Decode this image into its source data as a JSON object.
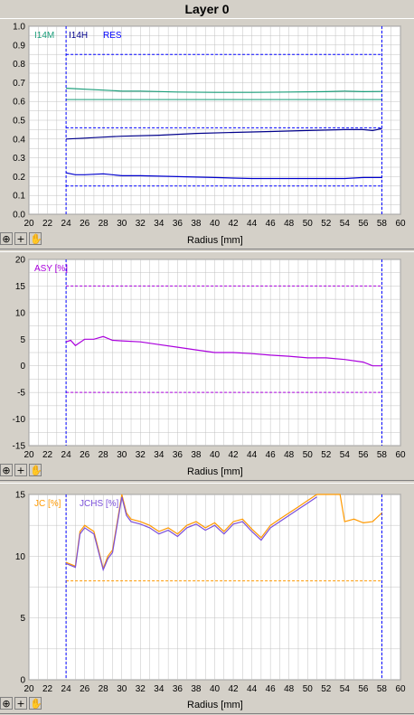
{
  "window": {
    "title": "Layer 0"
  },
  "toolbar": {
    "icons": [
      "zoom-icon",
      "crosshair-icon",
      "hand-pan-icon"
    ],
    "glyphs": [
      "⊕",
      "+",
      "✋"
    ]
  },
  "colors": {
    "grid": "#c0c0c0",
    "limit_blue": "#0000ff",
    "plot_bg": "#ffffff"
  },
  "chart_data": [
    {
      "type": "line",
      "xlabel": "Radius [mm]",
      "ylabel": "",
      "xlim": [
        20,
        60
      ],
      "ylim": [
        0.0,
        1.0
      ],
      "xticks": [
        "20",
        "22",
        "24",
        "26",
        "28",
        "30",
        "32",
        "34",
        "36",
        "38",
        "40",
        "42",
        "44",
        "46",
        "48",
        "50",
        "52",
        "54",
        "56",
        "58",
        "60"
      ],
      "yticks": [
        "0.0",
        "0.1",
        "0.2",
        "0.3",
        "0.4",
        "0.5",
        "0.6",
        "0.7",
        "0.8",
        "0.9",
        "1.0"
      ],
      "grid": true,
      "vlines": [
        24,
        58
      ],
      "legend": [
        "I14M",
        "I14H",
        "RES"
      ],
      "legend_colors": [
        "#1a9e7a",
        "#00008b",
        "#0000ff"
      ],
      "series": [
        {
          "name": "I14M",
          "color": "#1a9e7a",
          "x": [
            24,
            26,
            28,
            30,
            32,
            36,
            40,
            44,
            48,
            52,
            54,
            56,
            58
          ],
          "y": [
            0.67,
            0.665,
            0.66,
            0.655,
            0.655,
            0.65,
            0.648,
            0.648,
            0.65,
            0.652,
            0.655,
            0.652,
            0.653
          ]
        },
        {
          "name": "I14H",
          "color": "#00008b",
          "x": [
            24,
            26,
            28,
            30,
            34,
            38,
            42,
            46,
            50,
            54,
            56,
            57,
            58
          ],
          "y": [
            0.4,
            0.405,
            0.41,
            0.415,
            0.42,
            0.43,
            0.435,
            0.44,
            0.445,
            0.45,
            0.45,
            0.445,
            0.455
          ]
        },
        {
          "name": "RES",
          "color": "#0000cd",
          "x": [
            24,
            25,
            26,
            28,
            30,
            32,
            36,
            40,
            44,
            48,
            52,
            54,
            56,
            58
          ],
          "y": [
            0.22,
            0.21,
            0.21,
            0.215,
            0.205,
            0.205,
            0.2,
            0.195,
            0.19,
            0.19,
            0.19,
            0.19,
            0.195,
            0.195
          ]
        }
      ],
      "hlines": [
        {
          "y": 0.85,
          "color": "#0000ff",
          "style": "dashed"
        },
        {
          "y": 0.61,
          "color": "#1a9e7a",
          "style": "solid"
        },
        {
          "y": 0.46,
          "color": "#0000ff",
          "style": "dashed"
        },
        {
          "y": 0.15,
          "color": "#0000ff",
          "style": "dashed"
        }
      ]
    },
    {
      "type": "line",
      "xlabel": "Radius [mm]",
      "ylabel": "",
      "xlim": [
        20,
        60
      ],
      "ylim": [
        -15,
        20
      ],
      "xticks": [
        "20",
        "22",
        "24",
        "26",
        "28",
        "30",
        "32",
        "34",
        "36",
        "38",
        "40",
        "42",
        "44",
        "46",
        "48",
        "50",
        "52",
        "54",
        "56",
        "58",
        "60"
      ],
      "yticks": [
        "-15",
        "-10",
        "-5",
        "0",
        "5",
        "10",
        "15",
        "20"
      ],
      "grid": true,
      "vlines": [
        24,
        58
      ],
      "legend": [
        "ASY [%]"
      ],
      "legend_colors": [
        "#aa00dd"
      ],
      "series": [
        {
          "name": "ASY [%]",
          "color": "#aa00dd",
          "x": [
            24,
            24.5,
            25,
            26,
            27,
            28,
            29,
            30,
            32,
            34,
            36,
            38,
            40,
            42,
            44,
            46,
            48,
            50,
            52,
            54,
            56,
            57,
            58
          ],
          "y": [
            4.5,
            4.8,
            3.8,
            5.0,
            5.0,
            5.5,
            4.8,
            4.7,
            4.5,
            4.0,
            3.5,
            3.0,
            2.5,
            2.5,
            2.3,
            2.0,
            1.8,
            1.5,
            1.5,
            1.2,
            0.7,
            0.0,
            0.0
          ]
        }
      ],
      "hlines": [
        {
          "y": 15,
          "color": "#aa00dd",
          "style": "dashed"
        },
        {
          "y": -5,
          "color": "#aa00dd",
          "style": "dashed"
        }
      ]
    },
    {
      "type": "line",
      "xlabel": "Radius [mm]",
      "ylabel": "",
      "xlim": [
        20,
        60
      ],
      "ylim": [
        0,
        15
      ],
      "xticks": [
        "20",
        "22",
        "24",
        "26",
        "28",
        "30",
        "32",
        "34",
        "36",
        "38",
        "40",
        "42",
        "44",
        "46",
        "48",
        "50",
        "52",
        "54",
        "56",
        "58",
        "60"
      ],
      "yticks": [
        "0",
        "5",
        "10",
        "15"
      ],
      "grid": true,
      "vlines": [
        24,
        58
      ],
      "legend": [
        "JC [%]",
        "JCHS [%]"
      ],
      "legend_colors": [
        "#ff9900",
        "#7a4fd9"
      ],
      "series": [
        {
          "name": "JC [%]",
          "color": "#ff9900",
          "x": [
            24,
            25,
            25.5,
            26,
            27,
            28,
            28.5,
            29,
            30,
            30.5,
            31,
            32,
            33,
            34,
            35,
            36,
            37,
            38,
            39,
            40,
            41,
            42,
            43,
            44,
            45,
            46,
            47,
            48,
            49,
            50,
            51,
            53.5,
            54,
            55,
            56,
            57,
            58
          ],
          "y": [
            9.5,
            9.2,
            12.0,
            12.5,
            12.0,
            9.0,
            10.0,
            10.5,
            15.0,
            13.5,
            13.0,
            12.8,
            12.5,
            12.0,
            12.3,
            11.8,
            12.5,
            12.8,
            12.3,
            12.7,
            12.0,
            12.8,
            13.0,
            12.2,
            11.5,
            12.5,
            13.0,
            13.5,
            14.0,
            14.5,
            15.0,
            15.0,
            12.8,
            13.0,
            12.7,
            12.8,
            13.5
          ]
        },
        {
          "name": "JCHS [%]",
          "color": "#7a4fd9",
          "x": [
            24,
            25,
            25.5,
            26,
            27,
            28,
            28.5,
            29,
            30,
            30.5,
            31,
            32,
            33,
            34,
            35,
            36,
            37,
            38,
            39,
            40,
            41,
            42,
            43,
            44,
            45,
            46,
            47,
            48,
            49,
            50,
            51
          ],
          "y": [
            9.4,
            9.1,
            11.8,
            12.3,
            11.8,
            8.9,
            9.8,
            10.3,
            14.8,
            13.3,
            12.8,
            12.6,
            12.3,
            11.8,
            12.1,
            11.6,
            12.3,
            12.6,
            12.1,
            12.5,
            11.8,
            12.6,
            12.8,
            12.0,
            11.3,
            12.3,
            12.8,
            13.3,
            13.8,
            14.3,
            14.8
          ]
        }
      ],
      "hlines": [
        {
          "y": 8,
          "color": "#ff9900",
          "style": "dashed"
        }
      ]
    }
  ]
}
